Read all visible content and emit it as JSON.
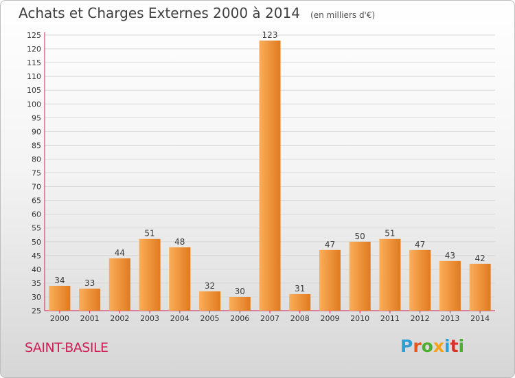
{
  "header": {
    "title": "Achats et Charges Externes 2000 à 2014",
    "subtitle": "(en milliers d'€)"
  },
  "footer": {
    "commune": "SAINT-BASILE",
    "brand": "Proxiti",
    "brand_colors": [
      "#2b9fd6",
      "#e8561d",
      "#4caf2f",
      "#f2a31a",
      "#2b9fd6",
      "#d9322b",
      "#4caf2f"
    ]
  },
  "colors": {
    "bar_light": "#fbae5a",
    "bar_dark": "#e07a1f",
    "axis_line": "#cf1f58",
    "grid": "#d8d8d8",
    "commune_text": "#cf1f58"
  },
  "chart_data": {
    "type": "bar",
    "title": "Achats et Charges Externes 2000 à 2014",
    "subtitle": "(en milliers d'€)",
    "categories": [
      "2000",
      "2001",
      "2002",
      "2003",
      "2004",
      "2005",
      "2006",
      "2007",
      "2008",
      "2009",
      "2010",
      "2011",
      "2012",
      "2013",
      "2014"
    ],
    "values": [
      34,
      33,
      44,
      51,
      48,
      32,
      30,
      123,
      31,
      47,
      50,
      51,
      47,
      43,
      42
    ],
    "ylim": [
      25,
      125
    ],
    "yticks": [
      25,
      30,
      35,
      40,
      45,
      50,
      55,
      60,
      65,
      70,
      75,
      80,
      85,
      90,
      95,
      100,
      105,
      110,
      115,
      120,
      125
    ],
    "grid": true,
    "legend": "none"
  }
}
